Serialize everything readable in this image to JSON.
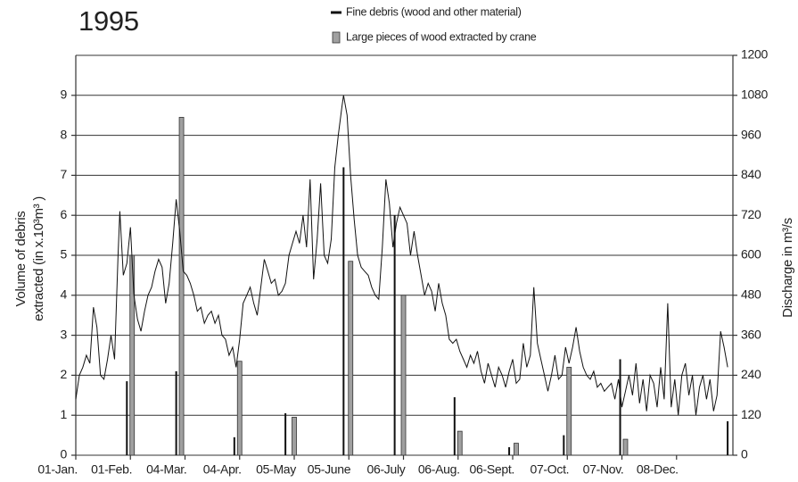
{
  "chart_data": {
    "type": "combo",
    "title": "1995",
    "ylabel": [
      "Volume of debris",
      "extracted (in x.10³m³ )"
    ],
    "y2label": "Discharge in m³/s",
    "xlim": [
      1,
      374
    ],
    "xticks": [
      {
        "value": 1,
        "label": "01-Jan."
      },
      {
        "value": 32,
        "label": "01-Feb."
      },
      {
        "value": 63,
        "label": "04-Mar."
      },
      {
        "value": 94,
        "label": "04-Apr."
      },
      {
        "value": 125,
        "label": "05-May"
      },
      {
        "value": 156,
        "label": "05-June"
      },
      {
        "value": 187,
        "label": "06-July"
      },
      {
        "value": 218,
        "label": "06-Aug."
      },
      {
        "value": 249,
        "label": "06-Sept."
      },
      {
        "value": 280,
        "label": "07-Oct."
      },
      {
        "value": 311,
        "label": "07-Nov."
      },
      {
        "value": 342,
        "label": "08-Dec."
      }
    ],
    "ylim": [
      0,
      10
    ],
    "yticks": [
      0,
      1,
      2,
      3,
      4,
      5,
      6,
      7,
      8,
      9
    ],
    "y2lim": [
      0,
      1200
    ],
    "y2ticks": [
      0,
      120,
      240,
      360,
      480,
      600,
      720,
      840,
      960,
      1080,
      1200
    ],
    "grid": true,
    "legend": "top",
    "series": [
      {
        "name": "Fine debris (wood and other material)",
        "type": "bar",
        "color": "#111111",
        "x": [
          30,
          58,
          91,
          120,
          153,
          182,
          216,
          247,
          278,
          310,
          371
        ],
        "values": [
          1.85,
          2.1,
          0.45,
          1.05,
          7.2,
          6.0,
          1.45,
          0.2,
          0.5,
          2.4,
          0.85
        ]
      },
      {
        "name": "Large pieces of wood extracted by crane",
        "type": "bar",
        "color": "#a0a0a0",
        "x": [
          33,
          61,
          94,
          125,
          157,
          187,
          219,
          251,
          281,
          313
        ],
        "values": [
          5.0,
          8.45,
          2.35,
          0.95,
          4.85,
          4.0,
          0.6,
          0.3,
          2.2,
          0.4
        ]
      }
    ],
    "line": {
      "type": "line",
      "axis": "y2",
      "color": "#111111",
      "x": [
        1,
        3,
        5,
        7,
        9,
        11,
        13,
        15,
        17,
        19,
        21,
        23,
        25,
        26,
        28,
        30,
        32,
        34,
        36,
        38,
        40,
        42,
        44,
        46,
        48,
        50,
        52,
        54,
        56,
        58,
        60,
        62,
        64,
        66,
        68,
        70,
        72,
        74,
        76,
        78,
        80,
        82,
        84,
        86,
        88,
        90,
        92,
        94,
        96,
        98,
        100,
        102,
        104,
        106,
        108,
        110,
        112,
        114,
        116,
        118,
        120,
        122,
        124,
        126,
        128,
        130,
        132,
        134,
        136,
        138,
        140,
        142,
        144,
        146,
        148,
        150,
        152,
        153,
        155,
        157,
        159,
        161,
        163,
        165,
        167,
        169,
        171,
        173,
        175,
        177,
        179,
        181,
        183,
        185,
        187,
        189,
        191,
        193,
        195,
        197,
        199,
        201,
        203,
        205,
        207,
        209,
        211,
        213,
        215,
        217,
        219,
        221,
        223,
        225,
        227,
        229,
        231,
        233,
        235,
        237,
        239,
        241,
        243,
        245,
        247,
        249,
        251,
        253,
        255,
        257,
        259,
        261,
        263,
        265,
        267,
        269,
        271,
        273,
        275,
        277,
        279,
        281,
        283,
        285,
        287,
        289,
        291,
        293,
        295,
        297,
        299,
        301,
        303,
        305,
        307,
        309,
        311,
        313,
        315,
        317,
        319,
        321,
        323,
        325,
        327,
        329,
        331,
        333,
        335,
        337,
        339,
        341,
        343,
        345,
        347,
        349,
        351,
        353,
        355,
        357,
        359,
        361,
        363,
        365,
        367,
        369,
        371
      ],
      "values": [
        168,
        240,
        264,
        300,
        276,
        444,
        384,
        240,
        228,
        288,
        360,
        288,
        600,
        732,
        540,
        576,
        684,
        480,
        408,
        372,
        432,
        480,
        504,
        552,
        588,
        564,
        456,
        516,
        636,
        768,
        672,
        552,
        540,
        516,
        480,
        432,
        444,
        396,
        420,
        432,
        396,
        420,
        360,
        348,
        300,
        324,
        264,
        348,
        456,
        480,
        504,
        456,
        420,
        504,
        588,
        552,
        516,
        528,
        480,
        492,
        516,
        600,
        636,
        672,
        636,
        720,
        624,
        828,
        528,
        648,
        816,
        600,
        576,
        648,
        864,
        960,
        1044,
        1080,
        1020,
        840,
        708,
        600,
        564,
        552,
        540,
        504,
        480,
        468,
        624,
        828,
        756,
        624,
        696,
        744,
        720,
        696,
        600,
        672,
        600,
        540,
        480,
        516,
        492,
        432,
        516,
        456,
        420,
        348,
        336,
        348,
        312,
        288,
        264,
        300,
        276,
        312,
        252,
        216,
        276,
        240,
        204,
        264,
        240,
        204,
        252,
        288,
        216,
        228,
        336,
        264,
        300,
        504,
        336,
        288,
        240,
        192,
        240,
        300,
        228,
        240,
        324,
        276,
        324,
        384,
        312,
        264,
        240,
        228,
        252,
        204,
        216,
        192,
        204,
        216,
        168,
        228,
        144,
        192,
        240,
        180,
        276,
        156,
        228,
        132,
        240,
        216,
        144,
        264,
        168,
        456,
        144,
        228,
        120,
        240,
        276,
        180,
        240,
        120,
        204,
        240,
        168,
        228,
        132,
        180,
        372,
        324,
        264
      ]
    }
  }
}
